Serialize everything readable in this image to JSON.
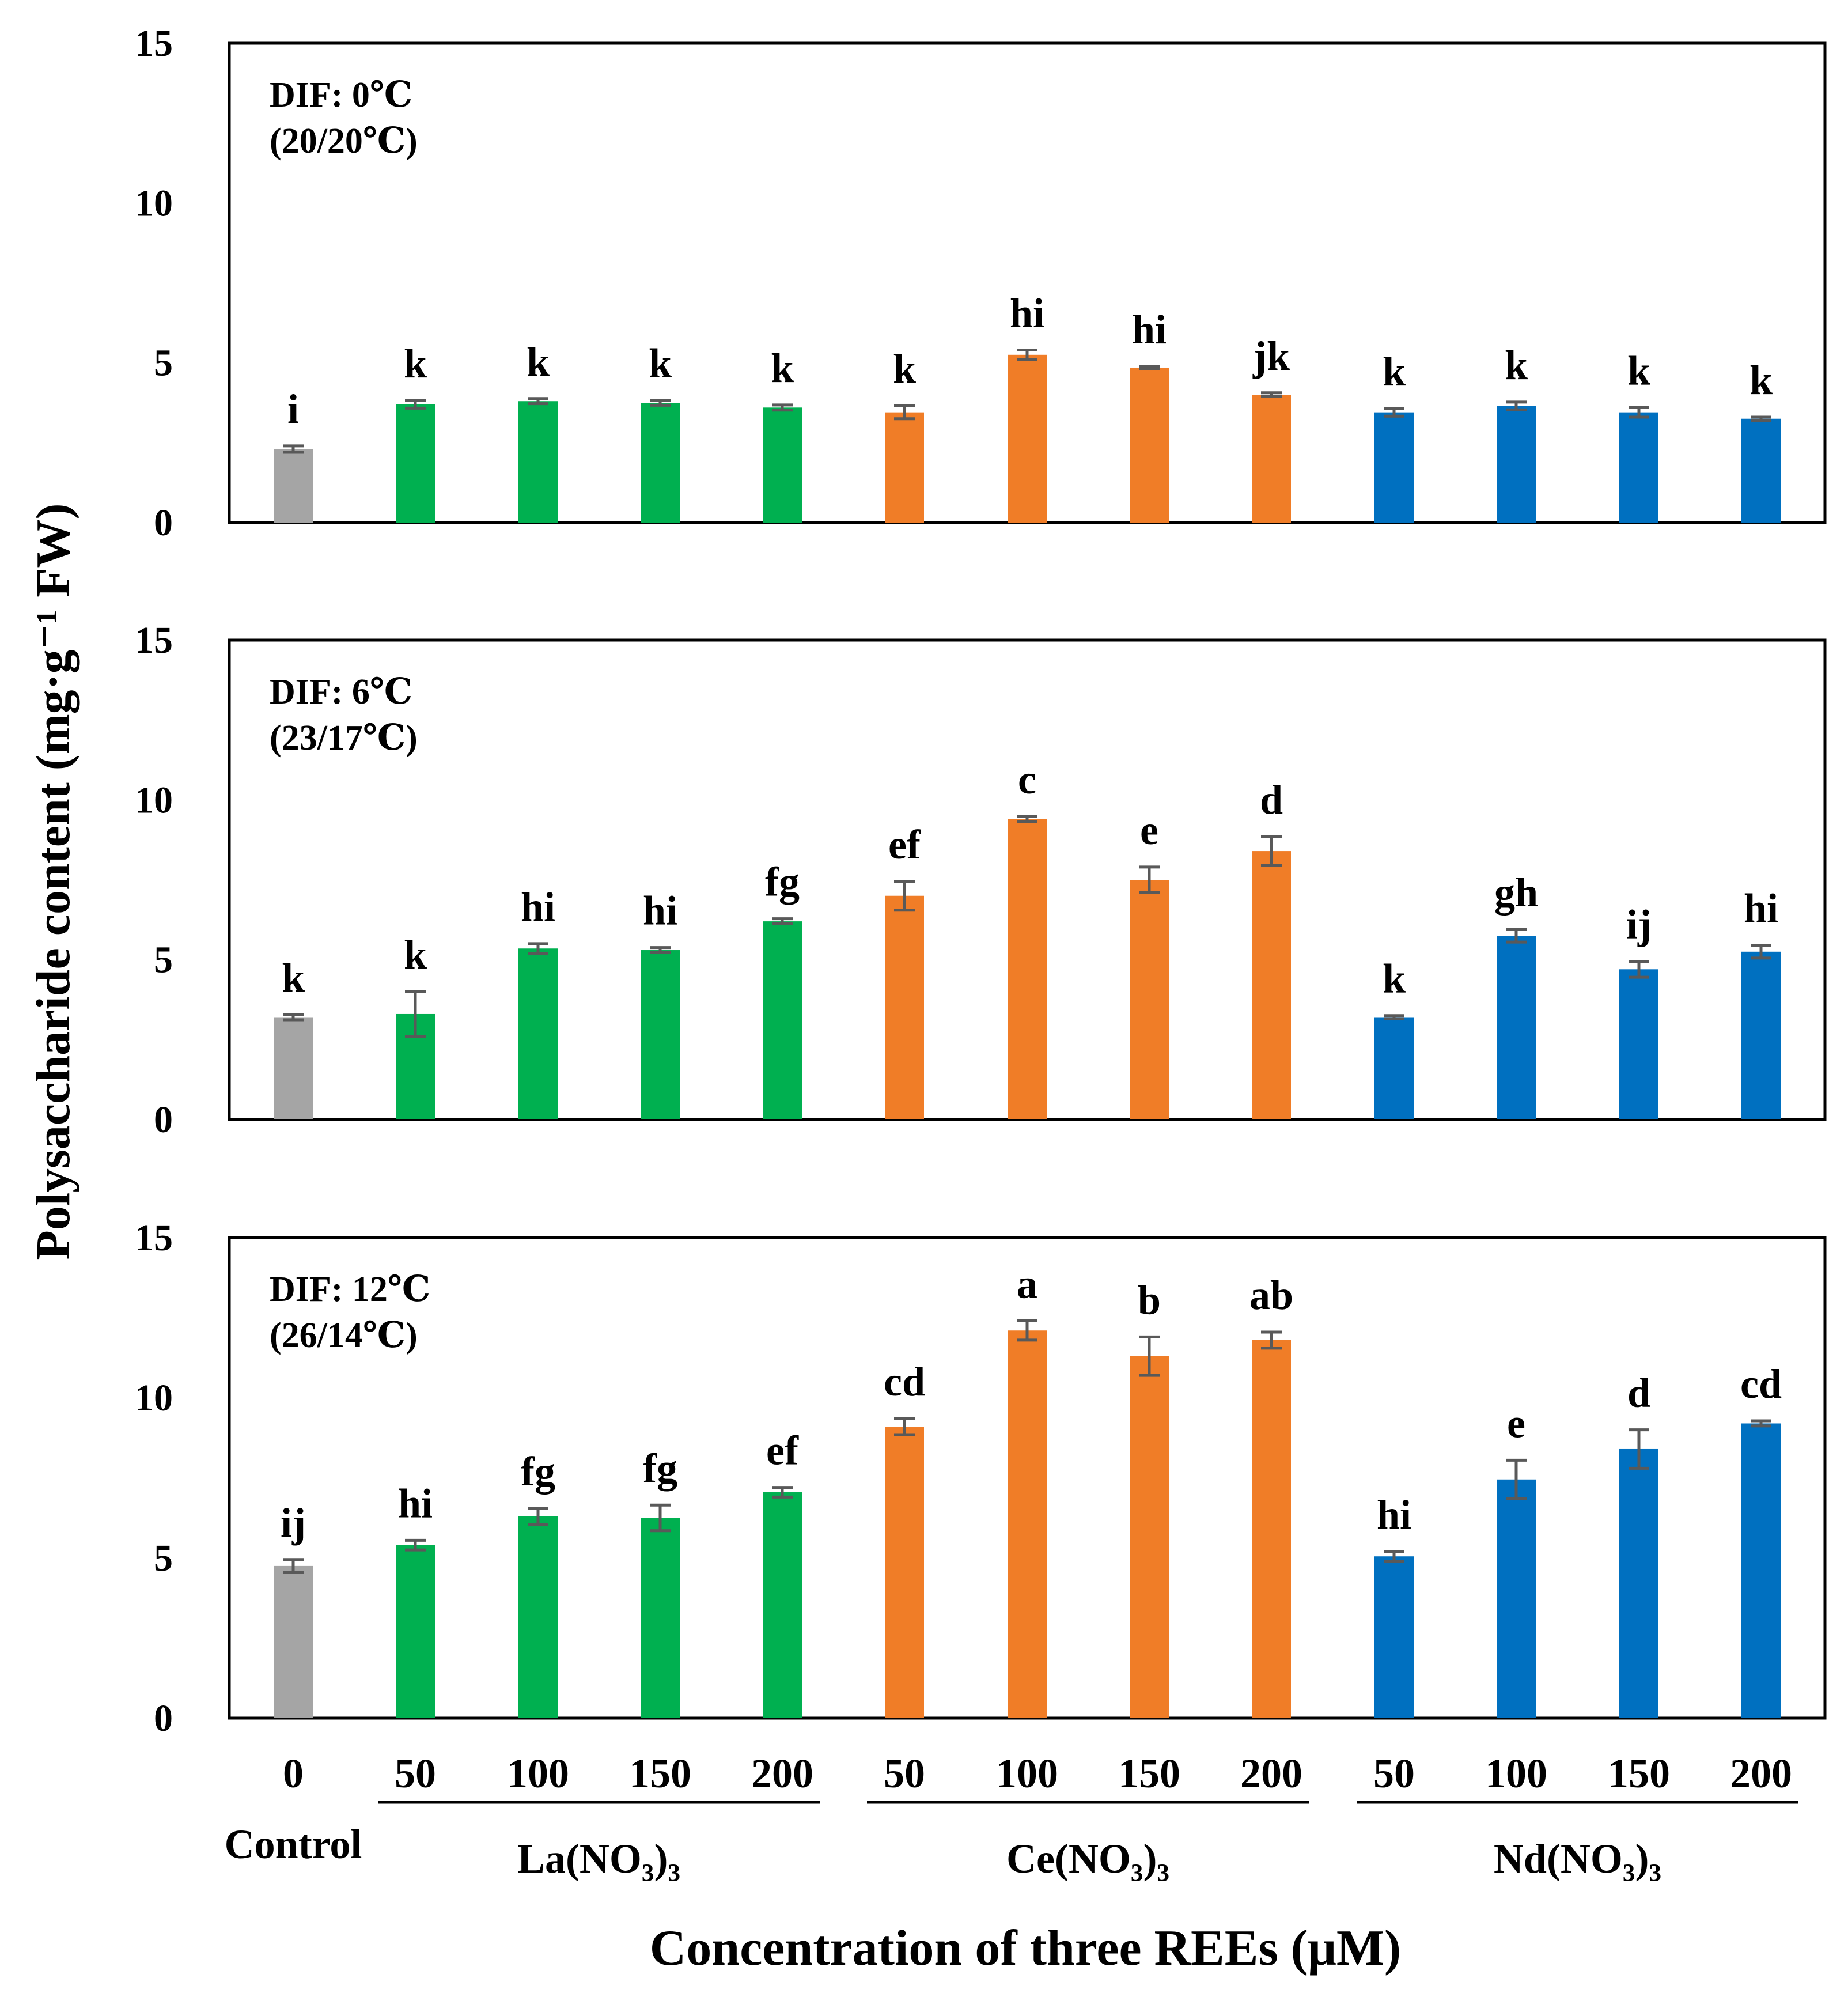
{
  "chart_data": {
    "type": "bar",
    "ylabel": "Polysaccharide content (mg·g⁻¹ FW)",
    "xlabel": "Concentration of three REEs (μM)",
    "ylim": [
      0,
      15
    ],
    "yticks": [
      "0",
      "5",
      "10",
      "15"
    ],
    "grid": false,
    "categories": [
      "0",
      "50",
      "100",
      "150",
      "200",
      "50",
      "100",
      "150",
      "200",
      "50",
      "100",
      "150",
      "200"
    ],
    "groups": [
      {
        "label": "Control",
        "color": "#a5a5a5",
        "count": 1
      },
      {
        "label": "La(NO₃)₃",
        "color": "#00b050",
        "count": 4
      },
      {
        "label": "Ce(NO₃)₃",
        "color": "#f07d27",
        "count": 4
      },
      {
        "label": "Nd(NO₃)₃",
        "color": "#0070c0",
        "count": 4
      }
    ],
    "panels": [
      {
        "label_line1": "DIF: 0℃",
        "label_line2": "(20/20℃)",
        "values": [
          2.3,
          3.7,
          3.8,
          3.75,
          3.6,
          3.45,
          5.25,
          4.85,
          4.0,
          3.45,
          3.65,
          3.45,
          3.25
        ],
        "errors": [
          0.1,
          0.12,
          0.08,
          0.08,
          0.08,
          0.2,
          0.15,
          0.04,
          0.06,
          0.12,
          0.12,
          0.15,
          0.05
        ],
        "letters": [
          "i",
          "k",
          "k",
          "k",
          "k",
          "k",
          "hi",
          "hi",
          "jk",
          "k",
          "k",
          "k",
          "k"
        ]
      },
      {
        "label_line1": "DIF: 6℃",
        "label_line2": "(23/17℃)",
        "values": [
          3.2,
          3.3,
          5.35,
          5.3,
          6.2,
          7.0,
          9.4,
          7.5,
          8.4,
          3.2,
          5.75,
          4.7,
          5.25
        ],
        "errors": [
          0.08,
          0.7,
          0.15,
          0.08,
          0.08,
          0.45,
          0.08,
          0.4,
          0.45,
          0.05,
          0.2,
          0.25,
          0.2
        ],
        "letters": [
          "k",
          "k",
          "hi",
          "hi",
          "fg",
          "ef",
          "c",
          "e",
          "d",
          "k",
          "gh",
          "ij",
          "hi"
        ]
      },
      {
        "label_line1": "DIF: 12℃",
        "label_line2": "(26/14℃)",
        "values": [
          4.75,
          5.4,
          6.3,
          6.25,
          7.05,
          9.1,
          12.1,
          11.3,
          11.8,
          5.05,
          7.45,
          8.4,
          9.2
        ],
        "errors": [
          0.2,
          0.15,
          0.25,
          0.4,
          0.15,
          0.25,
          0.3,
          0.6,
          0.25,
          0.15,
          0.6,
          0.6,
          0.08
        ],
        "letters": [
          "ij",
          "hi",
          "fg",
          "fg",
          "ef",
          "cd",
          "a",
          "b",
          "ab",
          "hi",
          "e",
          "d",
          "cd"
        ]
      }
    ]
  }
}
